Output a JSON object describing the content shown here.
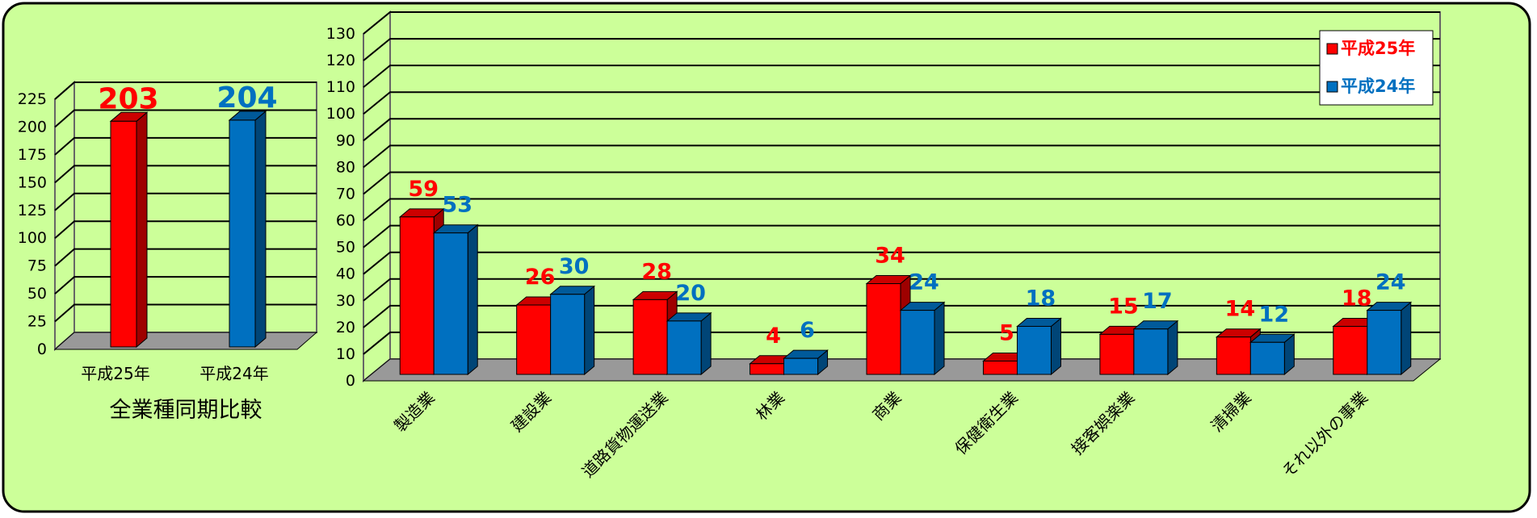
{
  "colors": {
    "background": "#CCFF99",
    "series1": "#FF0000",
    "series2": "#0070C0",
    "series1_label": "#FF0000",
    "series2_label": "#0070C0",
    "floor": "#999999",
    "grid": "#000000"
  },
  "chart_data": [
    {
      "type": "bar",
      "title": "全業種同期比較",
      "categories": [
        "平成25年",
        "平成24年"
      ],
      "values": [
        203,
        204
      ],
      "ylim": [
        0,
        225
      ],
      "yticks": [
        "0",
        "25",
        "50",
        "75",
        "100",
        "125",
        "150",
        "175",
        "200",
        "225"
      ],
      "grid": true,
      "three_d": true
    },
    {
      "type": "bar",
      "categories": [
        "製造業",
        "建設業",
        "道路貨物運送業",
        "林業",
        "商業",
        "保健衛生業",
        "接客娯楽業",
        "清掃業",
        "それ以外の事業"
      ],
      "series": [
        {
          "name": "平成25年",
          "values": [
            59,
            26,
            28,
            4,
            34,
            5,
            15,
            14,
            18
          ]
        },
        {
          "name": "平成24年",
          "values": [
            53,
            30,
            20,
            6,
            24,
            18,
            17,
            12,
            24
          ]
        }
      ],
      "ylim": [
        0,
        130
      ],
      "yticks": [
        "0",
        "10",
        "20",
        "30",
        "40",
        "50",
        "60",
        "70",
        "80",
        "90",
        "100",
        "110",
        "120",
        "130"
      ],
      "grid": true,
      "legend": "top-right",
      "three_d": true
    }
  ]
}
